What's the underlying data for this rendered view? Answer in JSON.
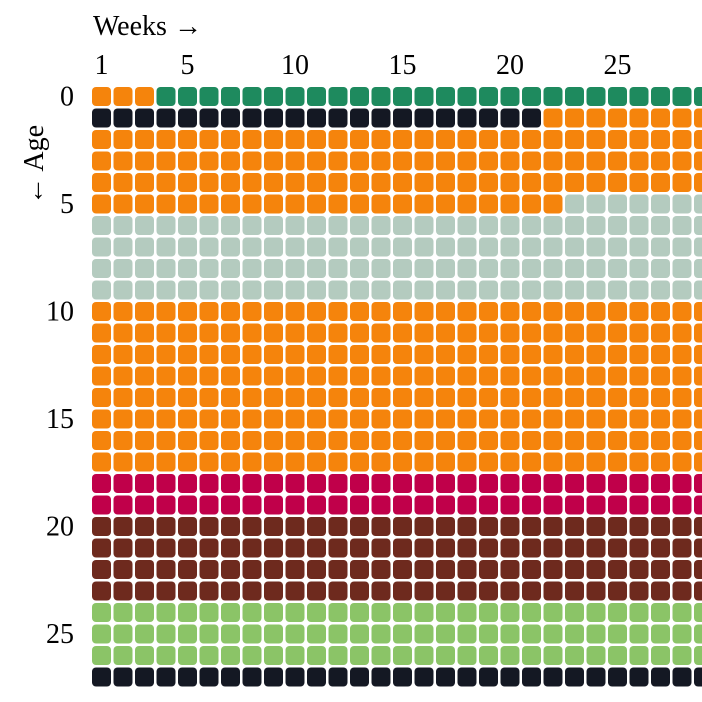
{
  "chart_data": {
    "type": "heatmap",
    "title": "",
    "xlabel": "Weeks →",
    "ylabel": "← Age",
    "x_tick_labels": [
      "1",
      "5",
      "10",
      "15",
      "20",
      "25"
    ],
    "x_tick_values": [
      1,
      5,
      10,
      15,
      20,
      25
    ],
    "y_tick_labels": [
      "0",
      "5",
      "10",
      "15",
      "20",
      "25"
    ],
    "y_tick_values": [
      0,
      5,
      10,
      15,
      20,
      25
    ],
    "visible_weeks": [
      1,
      29
    ],
    "visible_ages": [
      0,
      27
    ],
    "grid": false,
    "legend": "none",
    "colors": {
      "green": "#1e8a5e",
      "black": "#141823",
      "orange": "#f5840c",
      "gray": "#b4cbbf",
      "crimson": "#c0004a",
      "brown": "#6e2a1e",
      "light_green": "#8bc467"
    },
    "periods": [
      {
        "color": "orange",
        "start": [
          0,
          1
        ],
        "end": [
          0,
          3
        ]
      },
      {
        "color": "green",
        "start": [
          0,
          4
        ],
        "end": [
          0,
          29
        ]
      },
      {
        "color": "black",
        "start": [
          1,
          1
        ],
        "end": [
          1,
          21
        ]
      },
      {
        "color": "orange",
        "start": [
          1,
          22
        ],
        "end": [
          5,
          22
        ]
      },
      {
        "color": "gray",
        "start": [
          5,
          23
        ],
        "end": [
          9,
          29
        ]
      },
      {
        "color": "orange",
        "start": [
          10,
          1
        ],
        "end": [
          17,
          29
        ]
      },
      {
        "color": "crimson",
        "start": [
          18,
          1
        ],
        "end": [
          19,
          29
        ]
      },
      {
        "color": "brown",
        "start": [
          20,
          1
        ],
        "end": [
          23,
          29
        ]
      },
      {
        "color": "light_green",
        "start": [
          24,
          1
        ],
        "end": [
          26,
          29
        ]
      },
      {
        "color": "black",
        "start": [
          27,
          1
        ],
        "end": [
          27,
          29
        ]
      }
    ]
  }
}
